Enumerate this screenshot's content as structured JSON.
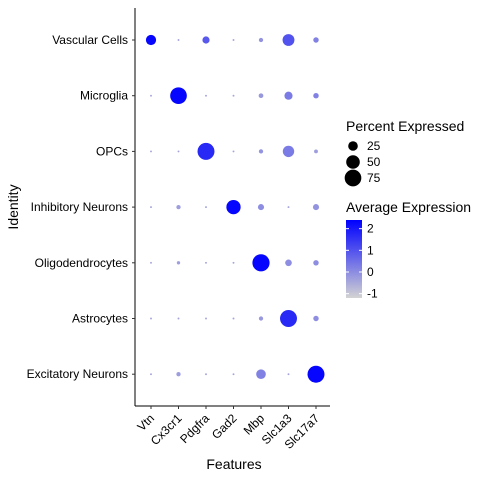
{
  "chart_data": {
    "type": "scatter",
    "subtype": "dot-plot",
    "xlabel": "Features",
    "ylabel": "Identity",
    "features": [
      "Vtn",
      "Cx3cr1",
      "Pdgfra",
      "Gad2",
      "Mbp",
      "Slc1a3",
      "Slc17a7"
    ],
    "identities": [
      "Vascular Cells",
      "Microglia",
      "OPCs",
      "Inhibitory Neurons",
      "Oligodendrocytes",
      "Astrocytes",
      "Excitatory Neurons"
    ],
    "colors": {
      "low": "#d3d3d3",
      "high": "#0000ff"
    },
    "color_range": [
      -1.2,
      2.4
    ],
    "size_range_pct": [
      0,
      80
    ],
    "legend": {
      "size_title": "Percent Expressed",
      "size_breaks": [
        25,
        50,
        75
      ],
      "size_labels": [
        "25",
        "50",
        "75"
      ],
      "color_title": "Average Expression",
      "color_breaks": [
        2,
        1,
        0,
        -1
      ],
      "color_labels": [
        "2",
        "1",
        "0",
        "-1"
      ],
      "position": "right"
    },
    "points": [
      {
        "identity": "Vascular Cells",
        "values": [
          {
            "feature": "Vtn",
            "pct": 28,
            "avg": 2.3
          },
          {
            "feature": "Cx3cr1",
            "pct": 1,
            "avg": -0.4
          },
          {
            "feature": "Pdgfra",
            "pct": 14,
            "avg": 0.9
          },
          {
            "feature": "Gad2",
            "pct": 1,
            "avg": -0.4
          },
          {
            "feature": "Mbp",
            "pct": 5,
            "avg": -0.1
          },
          {
            "feature": "Slc1a3",
            "pct": 38,
            "avg": 1.0
          },
          {
            "feature": "Slc17a7",
            "pct": 8,
            "avg": 0.2
          }
        ]
      },
      {
        "identity": "Microglia",
        "values": [
          {
            "feature": "Vtn",
            "pct": 1,
            "avg": -0.4
          },
          {
            "feature": "Cx3cr1",
            "pct": 75,
            "avg": 2.3
          },
          {
            "feature": "Pdgfra",
            "pct": 1,
            "avg": -0.4
          },
          {
            "feature": "Gad2",
            "pct": 1,
            "avg": -0.4
          },
          {
            "feature": "Mbp",
            "pct": 6,
            "avg": -0.2
          },
          {
            "feature": "Slc1a3",
            "pct": 18,
            "avg": 0.3
          },
          {
            "feature": "Slc17a7",
            "pct": 8,
            "avg": 0.2
          }
        ]
      },
      {
        "identity": "OPCs",
        "values": [
          {
            "feature": "Vtn",
            "pct": 1,
            "avg": -0.4
          },
          {
            "feature": "Cx3cr1",
            "pct": 1,
            "avg": -0.4
          },
          {
            "feature": "Pdgfra",
            "pct": 78,
            "avg": 1.7
          },
          {
            "feature": "Gad2",
            "pct": 1,
            "avg": -0.4
          },
          {
            "feature": "Mbp",
            "pct": 5,
            "avg": -0.1
          },
          {
            "feature": "Slc1a3",
            "pct": 35,
            "avg": 0.3
          },
          {
            "feature": "Slc17a7",
            "pct": 4,
            "avg": -0.3
          }
        ]
      },
      {
        "identity": "Inhibitory Neurons",
        "values": [
          {
            "feature": "Vtn",
            "pct": 1,
            "avg": -0.4
          },
          {
            "feature": "Cx3cr1",
            "pct": 5,
            "avg": -0.3
          },
          {
            "feature": "Pdgfra",
            "pct": 1,
            "avg": -0.4
          },
          {
            "feature": "Gad2",
            "pct": 55,
            "avg": 2.3
          },
          {
            "feature": "Mbp",
            "pct": 10,
            "avg": 0.0
          },
          {
            "feature": "Slc1a3",
            "pct": 1,
            "avg": -0.4
          },
          {
            "feature": "Slc17a7",
            "pct": 10,
            "avg": -0.1
          }
        ]
      },
      {
        "identity": "Oligodendrocytes",
        "values": [
          {
            "feature": "Vtn",
            "pct": 1,
            "avg": -0.4
          },
          {
            "feature": "Cx3cr1",
            "pct": 3,
            "avg": -0.3
          },
          {
            "feature": "Pdgfra",
            "pct": 1,
            "avg": -0.4
          },
          {
            "feature": "Gad2",
            "pct": 1,
            "avg": -0.4
          },
          {
            "feature": "Mbp",
            "pct": 80,
            "avg": 2.3
          },
          {
            "feature": "Slc1a3",
            "pct": 12,
            "avg": 0.0
          },
          {
            "feature": "Slc17a7",
            "pct": 8,
            "avg": 0.0
          }
        ]
      },
      {
        "identity": "Astrocytes",
        "values": [
          {
            "feature": "Vtn",
            "pct": 1,
            "avg": -0.4
          },
          {
            "feature": "Cx3cr1",
            "pct": 1,
            "avg": -0.4
          },
          {
            "feature": "Pdgfra",
            "pct": 1,
            "avg": -0.4
          },
          {
            "feature": "Gad2",
            "pct": 1,
            "avg": -0.4
          },
          {
            "feature": "Mbp",
            "pct": 5,
            "avg": -0.2
          },
          {
            "feature": "Slc1a3",
            "pct": 78,
            "avg": 1.7
          },
          {
            "feature": "Slc17a7",
            "pct": 8,
            "avg": 0.0
          }
        ]
      },
      {
        "identity": "Excitatory Neurons",
        "values": [
          {
            "feature": "Vtn",
            "pct": 1,
            "avg": -0.4
          },
          {
            "feature": "Cx3cr1",
            "pct": 5,
            "avg": -0.3
          },
          {
            "feature": "Pdgfra",
            "pct": 1,
            "avg": -0.4
          },
          {
            "feature": "Gad2",
            "pct": 1,
            "avg": -0.4
          },
          {
            "feature": "Mbp",
            "pct": 25,
            "avg": 0.2
          },
          {
            "feature": "Slc1a3",
            "pct": 1,
            "avg": -0.4
          },
          {
            "feature": "Slc17a7",
            "pct": 78,
            "avg": 2.3
          }
        ]
      }
    ]
  }
}
